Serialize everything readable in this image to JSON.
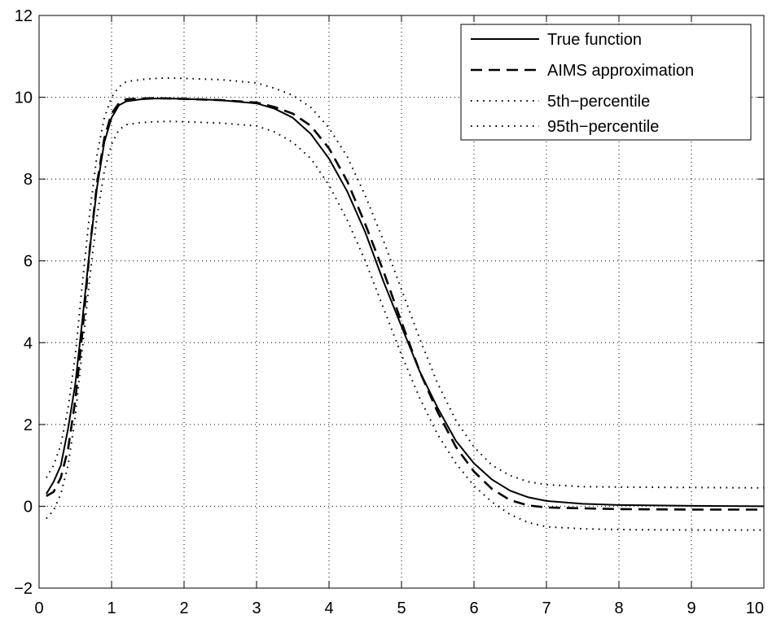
{
  "chart_data": {
    "type": "line",
    "title": "",
    "xlabel": "",
    "ylabel": "",
    "xlim": [
      0,
      10
    ],
    "ylim": [
      -2,
      12
    ],
    "x_ticks": [
      0,
      1,
      2,
      3,
      4,
      5,
      6,
      7,
      8,
      9,
      10
    ],
    "y_ticks": [
      -2,
      0,
      2,
      4,
      6,
      8,
      10,
      12
    ],
    "x_tick_labels": [
      "0",
      "1",
      "2",
      "3",
      "4",
      "5",
      "6",
      "7",
      "8",
      "9",
      "10"
    ],
    "y_tick_labels": [
      "−2",
      "0",
      "2",
      "4",
      "6",
      "8",
      "10",
      "12"
    ],
    "grid": true,
    "legend_position": "top-right",
    "series": [
      {
        "name": "True function",
        "style": "solid",
        "color": "#000000",
        "x": [
          0.1,
          0.2,
          0.3,
          0.4,
          0.5,
          0.6,
          0.7,
          0.8,
          0.9,
          1.0,
          1.1,
          1.2,
          1.4,
          1.6,
          1.8,
          2.0,
          2.5,
          3.0,
          3.25,
          3.5,
          3.75,
          4.0,
          4.25,
          4.5,
          4.75,
          5.0,
          5.25,
          5.5,
          5.75,
          6.0,
          6.25,
          6.5,
          6.75,
          7.0,
          7.5,
          8.0,
          9.0,
          10.0
        ],
        "y": [
          0.3,
          0.6,
          1.0,
          1.9,
          3.0,
          4.6,
          6.3,
          7.8,
          8.9,
          9.5,
          9.8,
          9.9,
          9.95,
          9.97,
          9.97,
          9.96,
          9.93,
          9.85,
          9.72,
          9.5,
          9.1,
          8.5,
          7.7,
          6.7,
          5.5,
          4.4,
          3.3,
          2.4,
          1.6,
          1.05,
          0.65,
          0.38,
          0.22,
          0.13,
          0.06,
          0.03,
          0.01,
          0.0
        ]
      },
      {
        "name": "AIMS approximation",
        "style": "dashed",
        "color": "#000000",
        "x": [
          0.1,
          0.2,
          0.3,
          0.4,
          0.5,
          0.6,
          0.7,
          0.8,
          0.9,
          1.0,
          1.1,
          1.2,
          1.4,
          1.6,
          1.8,
          2.0,
          2.5,
          3.0,
          3.25,
          3.5,
          3.75,
          4.0,
          4.25,
          4.5,
          4.75,
          5.0,
          5.25,
          5.5,
          5.75,
          6.0,
          6.25,
          6.5,
          6.75,
          7.0,
          7.5,
          8.0,
          9.0,
          10.0
        ],
        "y": [
          0.25,
          0.35,
          0.7,
          1.4,
          2.6,
          4.3,
          6.3,
          7.9,
          9.0,
          9.6,
          9.85,
          9.95,
          9.97,
          9.98,
          9.97,
          9.96,
          9.93,
          9.87,
          9.76,
          9.6,
          9.3,
          8.75,
          7.95,
          6.9,
          5.75,
          4.5,
          3.3,
          2.3,
          1.45,
          0.85,
          0.42,
          0.15,
          0.02,
          -0.03,
          -0.05,
          -0.07,
          -0.08,
          -0.08
        ]
      },
      {
        "name": "5th−percentile",
        "style": "dotted",
        "color": "#000000",
        "x": [
          0.1,
          0.2,
          0.3,
          0.4,
          0.5,
          0.6,
          0.7,
          0.8,
          0.9,
          1.0,
          1.1,
          1.2,
          1.4,
          1.6,
          1.8,
          2.0,
          2.5,
          3.0,
          3.25,
          3.5,
          3.75,
          4.0,
          4.25,
          4.5,
          4.75,
          5.0,
          5.25,
          5.5,
          5.75,
          6.0,
          6.25,
          6.5,
          6.75,
          7.0,
          7.5,
          8.0,
          9.0,
          10.0
        ],
        "y": [
          0.7,
          1.0,
          1.5,
          2.4,
          3.7,
          5.5,
          7.2,
          8.6,
          9.5,
          10.0,
          10.25,
          10.38,
          10.43,
          10.46,
          10.47,
          10.46,
          10.43,
          10.35,
          10.22,
          10.05,
          9.75,
          9.25,
          8.55,
          7.6,
          6.5,
          5.3,
          4.1,
          3.0,
          2.1,
          1.45,
          1.0,
          0.75,
          0.6,
          0.53,
          0.48,
          0.47,
          0.46,
          0.45
        ]
      },
      {
        "name": "95th−percentile",
        "style": "dotted",
        "color": "#000000",
        "x": [
          0.1,
          0.2,
          0.3,
          0.4,
          0.5,
          0.6,
          0.7,
          0.8,
          0.9,
          1.0,
          1.1,
          1.2,
          1.4,
          1.6,
          1.8,
          2.0,
          2.5,
          3.0,
          3.25,
          3.5,
          3.75,
          4.0,
          4.25,
          4.5,
          4.75,
          5.0,
          5.25,
          5.5,
          5.75,
          6.0,
          6.25,
          6.5,
          6.75,
          7.0,
          7.5,
          8.0,
          9.0,
          10.0
        ],
        "y": [
          -0.3,
          -0.1,
          0.3,
          1.0,
          2.2,
          3.9,
          5.6,
          7.1,
          8.2,
          8.85,
          9.2,
          9.33,
          9.38,
          9.4,
          9.41,
          9.4,
          9.37,
          9.3,
          9.15,
          8.9,
          8.5,
          7.85,
          7.0,
          6.0,
          4.85,
          3.7,
          2.65,
          1.75,
          1.05,
          0.5,
          0.1,
          -0.2,
          -0.4,
          -0.5,
          -0.55,
          -0.57,
          -0.58,
          -0.58
        ]
      }
    ]
  }
}
